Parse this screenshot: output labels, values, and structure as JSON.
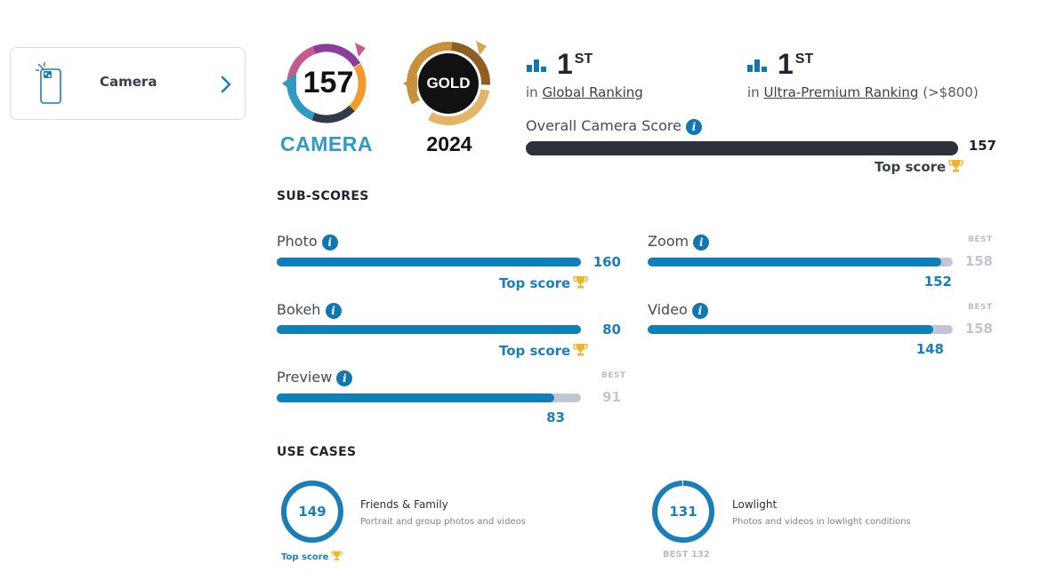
{
  "sidebar": {
    "item_label": "Camera"
  },
  "badges": {
    "camera_score": "157",
    "camera_word": "CAMERA",
    "gold_label": "GOLD",
    "year": "2024"
  },
  "ranking": {
    "global": {
      "rank": "1",
      "suffix": "ST",
      "prefix": "in",
      "link": "Global Ranking"
    },
    "segment": {
      "rank": "1",
      "suffix": "ST",
      "prefix": "in",
      "link": "Ultra-Premium Ranking",
      "range": "(>$800)"
    }
  },
  "overall": {
    "label": "Overall Camera Score",
    "score": "157",
    "fill_fraction": 1.0,
    "top_label": "Top score"
  },
  "subscores": {
    "title": "SUB-SCORES",
    "photo": {
      "label": "Photo",
      "score": "160",
      "best": "160",
      "top_label": "Top score",
      "fraction": 1.0
    },
    "bokeh": {
      "label": "Bokeh",
      "score": "80",
      "best": "80",
      "top_label": "Top score",
      "fraction": 1.0
    },
    "preview": {
      "label": "Preview",
      "score": "83",
      "best_tag": "BEST",
      "best": "91",
      "fraction": 0.912
    },
    "zoom": {
      "label": "Zoom",
      "score": "152",
      "best_tag": "BEST",
      "best": "158",
      "fraction": 0.962
    },
    "video": {
      "label": "Video",
      "score": "148",
      "best_tag": "BEST",
      "best": "158",
      "fraction": 0.937
    }
  },
  "use_cases": {
    "title": "USE CASES",
    "friends": {
      "score": "149",
      "title": "Friends & Family",
      "desc": "Portrait and group photos and videos",
      "note": "Top score",
      "fraction": 1.0
    },
    "lowlight": {
      "score": "131",
      "title": "Lowlight",
      "desc": "Photos and videos in lowlight conditions",
      "note": "BEST 132",
      "fraction": 0.992
    }
  },
  "colors": {
    "accent": "#1a7fb8",
    "bar_fill": "#0f7fb8",
    "bar_track": "#c0c6d6",
    "overall_bar": "#2c313c",
    "gold": "#c8903a",
    "trophy": "#f0b429"
  }
}
